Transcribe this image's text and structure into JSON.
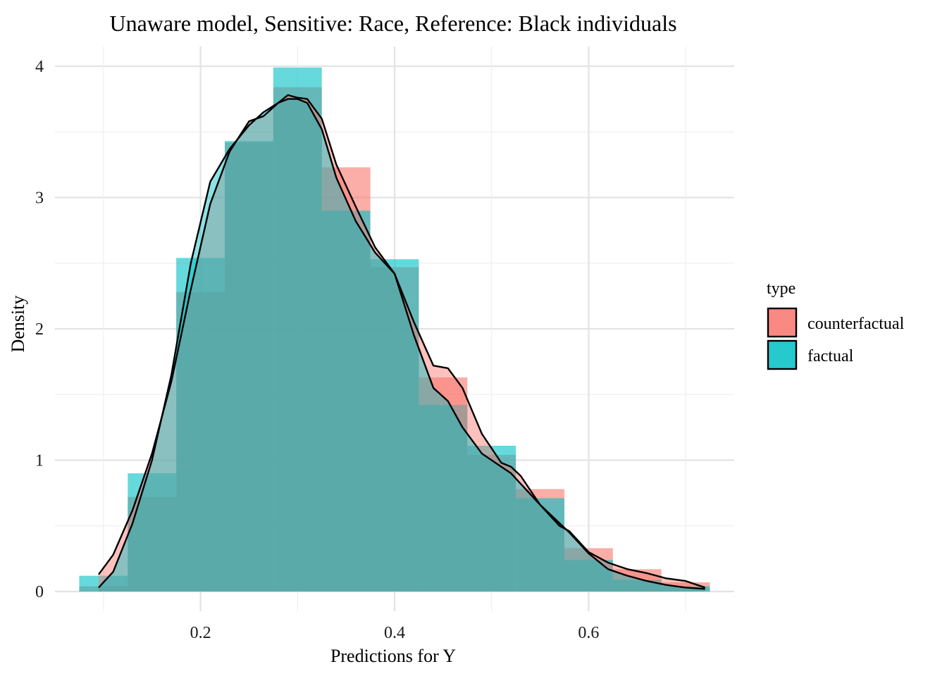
{
  "chart_data": {
    "type": "histogram+density",
    "title": "Unaware model, Sensitive: Race, Reference: Black individuals",
    "xlabel": "Predictions for Y",
    "ylabel": "Density",
    "xlim": [
      0.05,
      0.75
    ],
    "ylim": [
      -0.15,
      4.15
    ],
    "x_ticks": [
      0.2,
      0.4,
      0.6
    ],
    "x_tick_labels": [
      "0.2",
      "0.4",
      "0.6"
    ],
    "y_ticks": [
      0,
      1,
      2,
      3,
      4
    ],
    "y_tick_labels": [
      "0",
      "1",
      "2",
      "3",
      "4"
    ],
    "grid": true,
    "legend": {
      "title": "type",
      "position": "right"
    },
    "bin_edges": [
      0.075,
      0.125,
      0.175,
      0.225,
      0.275,
      0.325,
      0.375,
      0.425,
      0.475,
      0.525,
      0.575,
      0.625,
      0.675,
      0.725
    ],
    "series": [
      {
        "name": "counterfactual",
        "color": "#F8766D",
        "hist": [
          0.04,
          0.72,
          2.28,
          3.42,
          3.84,
          3.23,
          2.47,
          1.63,
          1.04,
          0.78,
          0.33,
          0.17,
          0.07
        ],
        "density": {
          "x": [
            0.095,
            0.11,
            0.13,
            0.15,
            0.17,
            0.19,
            0.21,
            0.23,
            0.25,
            0.265,
            0.28,
            0.29,
            0.3,
            0.31,
            0.325,
            0.34,
            0.36,
            0.38,
            0.4,
            0.42,
            0.44,
            0.455,
            0.47,
            0.49,
            0.51,
            0.52,
            0.53,
            0.55,
            0.57,
            0.58,
            0.6,
            0.62,
            0.64,
            0.66,
            0.68,
            0.7,
            0.72
          ],
          "y": [
            0.13,
            0.28,
            0.62,
            1.05,
            1.6,
            2.3,
            2.95,
            3.35,
            3.58,
            3.62,
            3.72,
            3.78,
            3.76,
            3.75,
            3.6,
            3.25,
            2.93,
            2.62,
            2.42,
            2.05,
            1.72,
            1.7,
            1.55,
            1.2,
            0.98,
            0.95,
            0.88,
            0.66,
            0.5,
            0.46,
            0.3,
            0.22,
            0.17,
            0.14,
            0.1,
            0.08,
            0.03
          ]
        }
      },
      {
        "name": "factual",
        "color": "#00BFC4",
        "hist": [
          0.12,
          0.9,
          2.54,
          3.43,
          3.99,
          2.9,
          2.53,
          1.42,
          1.11,
          0.71,
          0.24,
          0.09,
          0.04
        ],
        "density": {
          "x": [
            0.095,
            0.11,
            0.13,
            0.15,
            0.17,
            0.19,
            0.21,
            0.23,
            0.25,
            0.265,
            0.28,
            0.29,
            0.3,
            0.31,
            0.325,
            0.34,
            0.36,
            0.38,
            0.4,
            0.42,
            0.44,
            0.455,
            0.47,
            0.49,
            0.51,
            0.52,
            0.53,
            0.55,
            0.57,
            0.58,
            0.6,
            0.62,
            0.64,
            0.66,
            0.68,
            0.7,
            0.72
          ],
          "y": [
            0.03,
            0.15,
            0.52,
            1.0,
            1.65,
            2.5,
            3.12,
            3.37,
            3.55,
            3.65,
            3.72,
            3.75,
            3.75,
            3.72,
            3.52,
            3.15,
            2.82,
            2.58,
            2.42,
            1.95,
            1.55,
            1.45,
            1.25,
            1.05,
            0.95,
            0.9,
            0.82,
            0.66,
            0.52,
            0.45,
            0.29,
            0.17,
            0.12,
            0.08,
            0.05,
            0.03,
            0.02
          ]
        }
      }
    ]
  }
}
